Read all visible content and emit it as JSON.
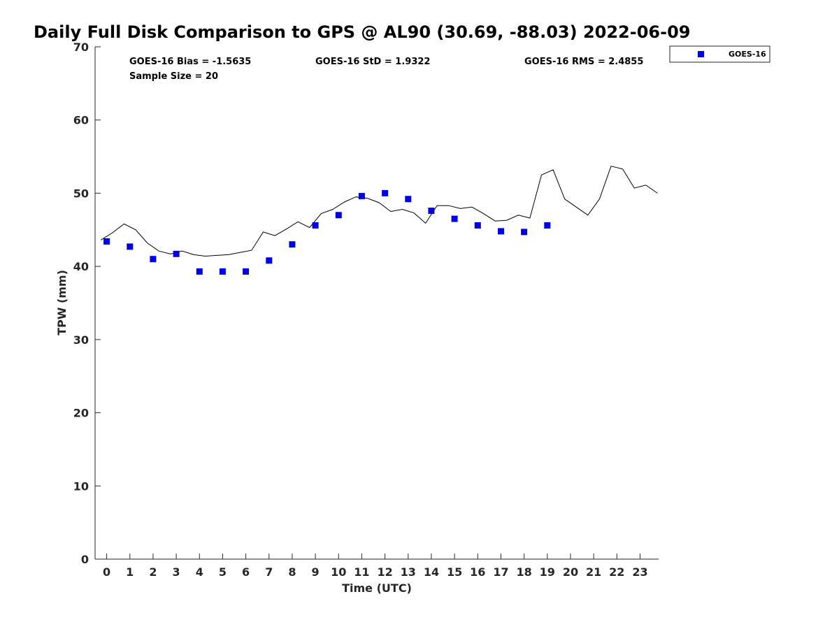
{
  "chart_data": {
    "type": "scatter",
    "title": "Daily Full Disk Comparison to GPS @ AL90 (30.69, -88.03) 2022-06-09",
    "xlabel": "Time (UTC)",
    "ylabel": "TPW (mm)",
    "xlim": [
      -0.5,
      23.8
    ],
    "ylim": [
      0,
      70
    ],
    "xticks": [
      "0",
      "1",
      "2",
      "3",
      "4",
      "5",
      "6",
      "7",
      "8",
      "9",
      "10",
      "11",
      "12",
      "13",
      "14",
      "15",
      "16",
      "17",
      "18",
      "19",
      "20",
      "21",
      "22",
      "23"
    ],
    "yticks": [
      "0",
      "10",
      "20",
      "30",
      "40",
      "50",
      "60",
      "70"
    ],
    "grid": false,
    "legend_placement": "outside top-right",
    "stats": {
      "bias": "GOES-16 Bias = -1.5635",
      "std": "GOES-16 StD = 1.9322",
      "rms": "GOES-16 RMS = 2.4855",
      "sample": "Sample Size = 20"
    },
    "series": [
      {
        "name": "GOES-16",
        "kind": "scatter",
        "marker": "square",
        "color": "#0000e0",
        "x": [
          0.0,
          1.0,
          2.0,
          3.0,
          4.0,
          5.0,
          6.0,
          7.0,
          8.0,
          9.0,
          10.0,
          11.0,
          12.0,
          13.0,
          14.0,
          15.0,
          16.0,
          17.0,
          18.0,
          19.0
        ],
        "y": [
          43.4,
          42.7,
          41.0,
          41.7,
          39.3,
          39.3,
          39.3,
          40.8,
          43.0,
          45.6,
          47.0,
          49.6,
          50.0,
          49.2,
          47.6,
          46.5,
          45.6,
          44.8,
          44.7,
          45.6
        ]
      },
      {
        "kind": "line",
        "color": "#000000",
        "x": [
          -0.25,
          0.25,
          0.75,
          1.25,
          1.75,
          2.25,
          2.75,
          3.25,
          3.75,
          4.25,
          4.75,
          5.25,
          5.75,
          6.25,
          6.75,
          7.25,
          7.75,
          8.25,
          8.75,
          9.25,
          9.75,
          10.25,
          10.75,
          11.25,
          11.75,
          12.25,
          12.75,
          13.25,
          13.75,
          14.25,
          14.75,
          15.25,
          15.75,
          16.25,
          16.75,
          17.25,
          17.75,
          18.25,
          18.75,
          19.25,
          19.75,
          20.25,
          20.75,
          21.25,
          21.75,
          22.25,
          22.75,
          23.25,
          23.75
        ],
        "y": [
          43.6,
          44.6,
          45.8,
          45.0,
          43.2,
          42.1,
          41.7,
          42.1,
          41.6,
          41.4,
          41.5,
          41.6,
          41.9,
          42.2,
          44.7,
          44.2,
          45.1,
          46.1,
          45.3,
          47.2,
          47.8,
          48.8,
          49.5,
          49.3,
          48.7,
          47.5,
          47.8,
          47.3,
          45.9,
          48.3,
          48.3,
          47.9,
          48.1,
          47.2,
          46.2,
          46.3,
          47.0,
          46.6,
          52.5,
          53.2,
          49.2,
          48.1,
          47.0,
          49.2,
          53.7,
          53.3,
          50.7,
          51.1,
          50.0
        ]
      }
    ]
  }
}
